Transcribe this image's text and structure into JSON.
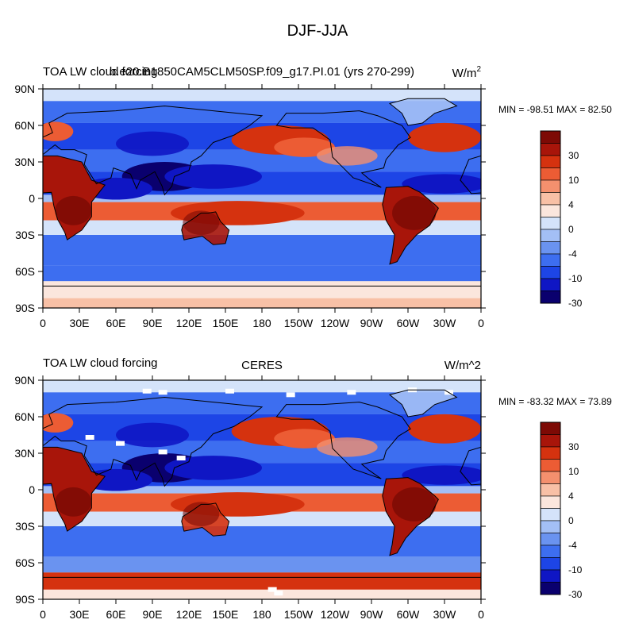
{
  "figure": {
    "title": "DJF-JJA"
  },
  "palette": [
    "#0a006e",
    "#0f16c4",
    "#1d45e6",
    "#3d6ef0",
    "#6a93f0",
    "#a3bff5",
    "#d4e3fa",
    "#fbe6dd",
    "#f8c0a6",
    "#f4906e",
    "#ec5c34",
    "#d5320f",
    "#a8150a",
    "#7d0a05"
  ],
  "colorbar_labels": [
    "30",
    "10",
    "4",
    "0",
    "-4",
    "-10",
    "-30"
  ],
  "x_ticks": [
    "0",
    "30E",
    "60E",
    "90E",
    "120E",
    "150E",
    "180",
    "150W",
    "120W",
    "90W",
    "60W",
    "30W",
    "0"
  ],
  "y_ticks": [
    "90N",
    "60N",
    "30N",
    "0",
    "30S",
    "60S",
    "90S"
  ],
  "panels": [
    {
      "left_title": "TOA LW cloud forcing",
      "center_title": "b.e20.B1850CAM5CLM50SP.f09_g17.PI.01 (yrs 270-299)",
      "units_base": "W/m",
      "units_sup": "2",
      "stats": "MIN = -98.51 MAX =  82.50"
    },
    {
      "left_title": "TOA LW cloud forcing",
      "center_title": "CERES",
      "units_base": "W/m^2",
      "units_sup": "",
      "stats": "MIN = -83.32 MAX =  73.89"
    }
  ]
}
